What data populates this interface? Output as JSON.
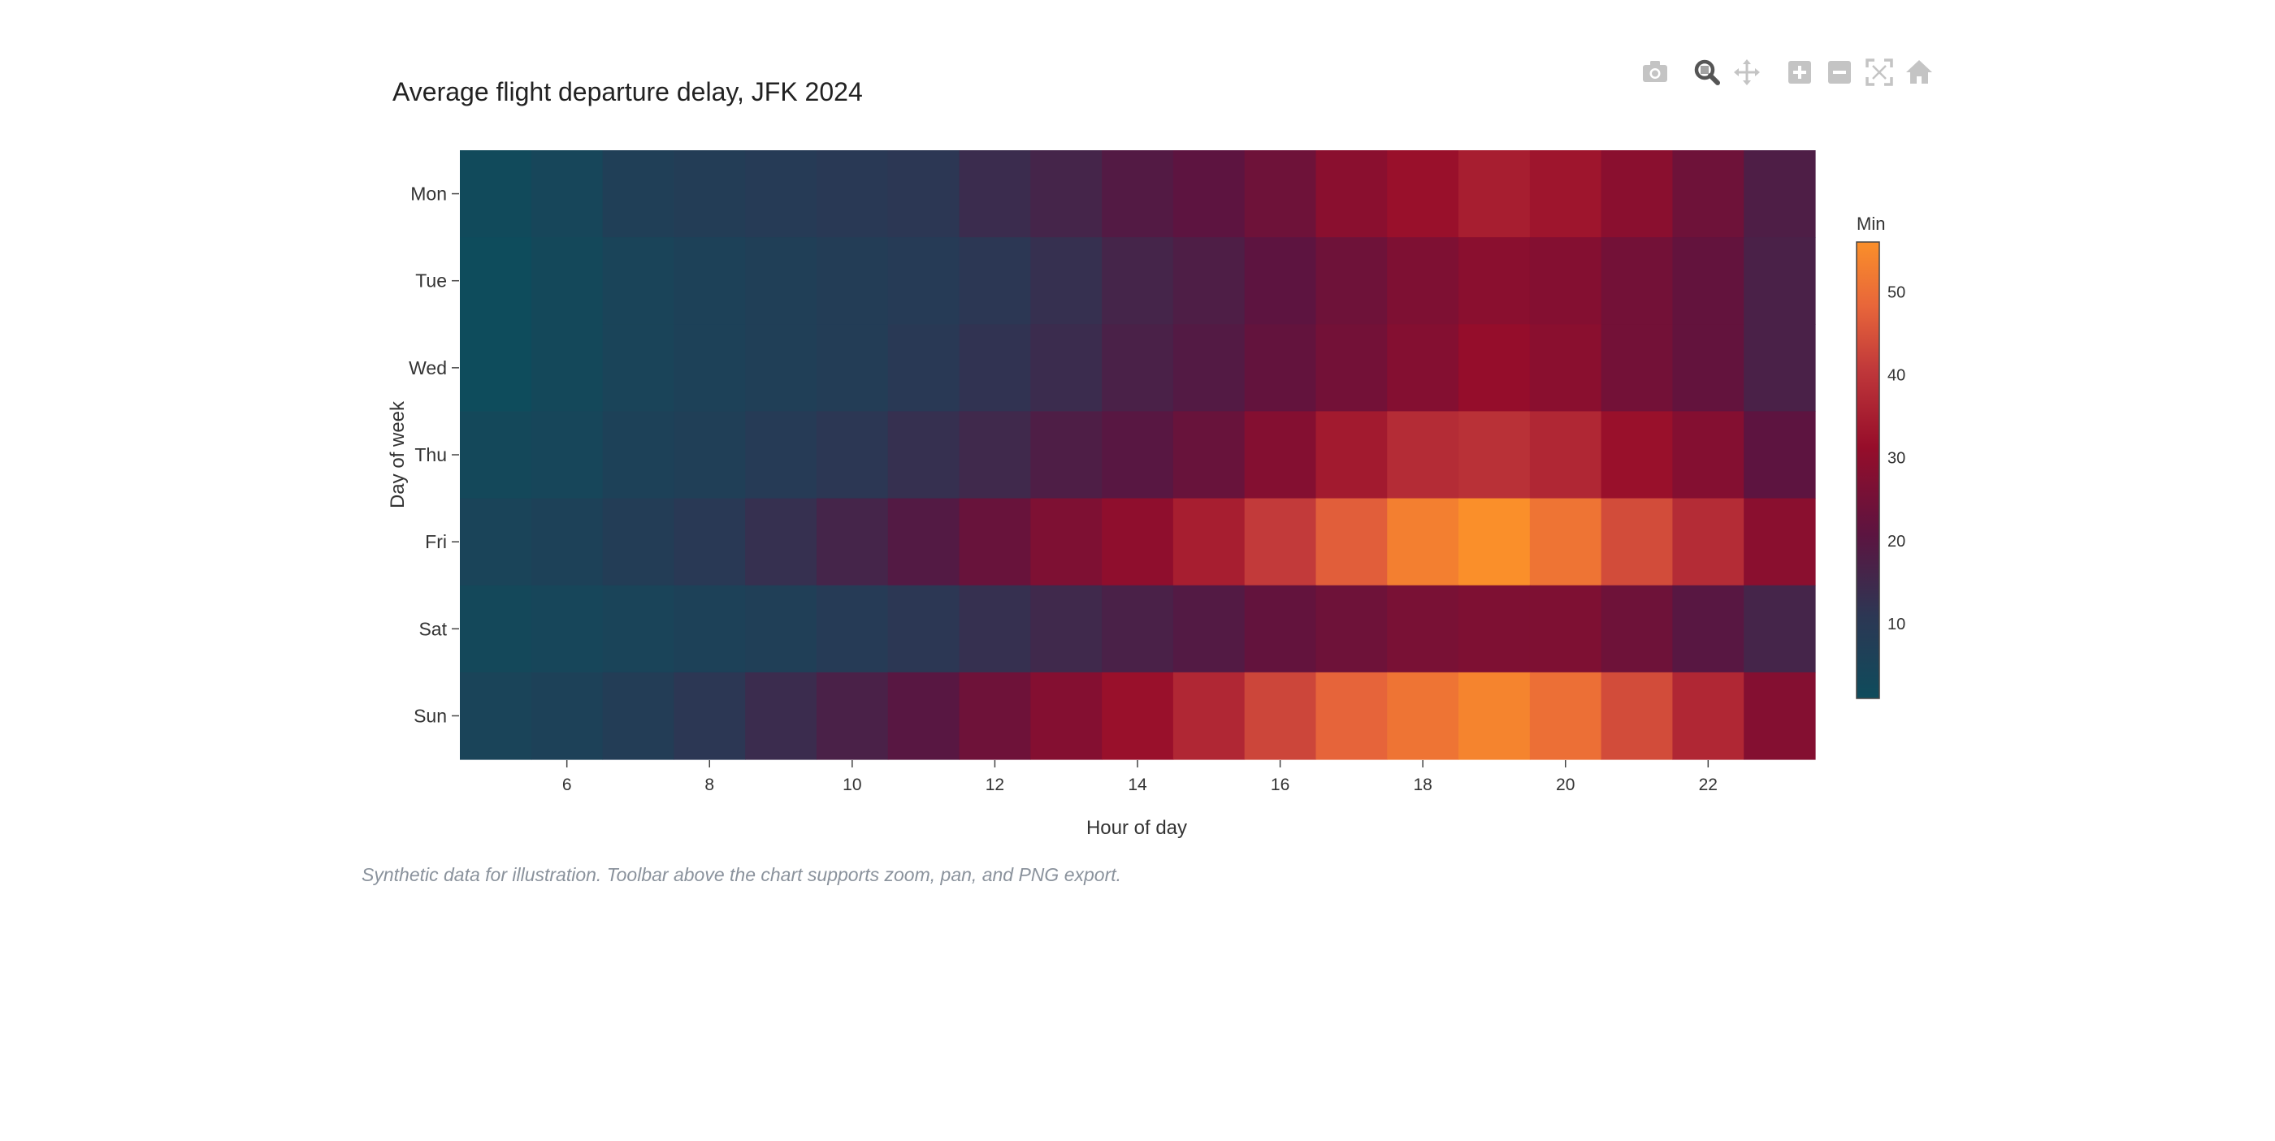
{
  "chart_data": {
    "type": "heatmap",
    "title": "Average flight departure delay, JFK 2024",
    "xlabel": "Hour of day",
    "ylabel": "Day of week",
    "x": [
      5,
      6,
      7,
      8,
      9,
      10,
      11,
      12,
      13,
      14,
      15,
      16,
      17,
      18,
      19,
      20,
      21,
      22,
      23
    ],
    "x_ticks": [
      6,
      8,
      10,
      12,
      14,
      16,
      18,
      20,
      22
    ],
    "xlim": [
      4.5,
      23.5
    ],
    "y": [
      "Mon",
      "Tue",
      "Wed",
      "Thu",
      "Fri",
      "Sat",
      "Sun"
    ],
    "z": [
      [
        2,
        4,
        7,
        8,
        9,
        10,
        11,
        14,
        16,
        19,
        21,
        24,
        29,
        32,
        35,
        33,
        29,
        24,
        18
      ],
      [
        1,
        3,
        5,
        6,
        7,
        8,
        9,
        11,
        13,
        16,
        18,
        21,
        24,
        27,
        29,
        28,
        25,
        22,
        17
      ],
      [
        1,
        3,
        5,
        6,
        7,
        8,
        10,
        12,
        14,
        17,
        19,
        22,
        25,
        28,
        31,
        29,
        25,
        22,
        17
      ],
      [
        3,
        4,
        6,
        7,
        9,
        11,
        13,
        15,
        18,
        20,
        23,
        28,
        34,
        38,
        39,
        37,
        32,
        28,
        21
      ],
      [
        5,
        6,
        8,
        10,
        13,
        16,
        19,
        23,
        27,
        30,
        35,
        41,
        47,
        53,
        56,
        51,
        44,
        38,
        29
      ],
      [
        3,
        4,
        5,
        6,
        7,
        9,
        11,
        13,
        15,
        17,
        19,
        22,
        24,
        26,
        27,
        27,
        24,
        20,
        16
      ],
      [
        5,
        6,
        8,
        11,
        14,
        17,
        20,
        24,
        28,
        32,
        37,
        43,
        48,
        51,
        54,
        50,
        44,
        37,
        28
      ]
    ],
    "colorscale": [
      [
        0.0,
        "#0e4c5c"
      ],
      [
        0.18,
        "#2c3754"
      ],
      [
        0.36,
        "#5c1440"
      ],
      [
        0.55,
        "#960d2a"
      ],
      [
        0.72,
        "#c0383a"
      ],
      [
        0.86,
        "#e8663a"
      ],
      [
        1.0,
        "#fa8f2a"
      ]
    ],
    "zmin": 1,
    "zmax": 56,
    "colorbar": {
      "title": "Min",
      "ticks": [
        10,
        20,
        30,
        40,
        50
      ]
    },
    "caption": "Synthetic data for illustration. Toolbar above the chart supports zoom, pan, and PNG export."
  },
  "toolbar": {
    "buttons": [
      {
        "name": "camera-icon",
        "active": false
      },
      {
        "name": "zoom-icon",
        "active": true
      },
      {
        "name": "pan-icon",
        "active": false
      },
      {
        "name": "zoom-in-icon",
        "active": false
      },
      {
        "name": "zoom-out-icon",
        "active": false
      },
      {
        "name": "autoscale-icon",
        "active": false
      },
      {
        "name": "reset-axes-icon",
        "active": false
      }
    ],
    "icon_color": "#c4c4c4",
    "active_color": "#555555"
  }
}
